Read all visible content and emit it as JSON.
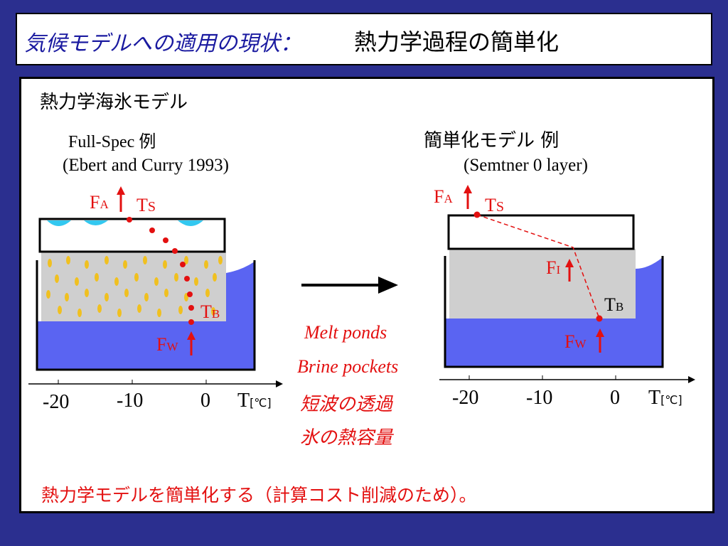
{
  "header": {
    "italic_title": "気候モデルへの適用の現状：",
    "main_title": "熱力学過程の簡単化"
  },
  "content": {
    "section_title": "熱力学海氷モデル",
    "left": {
      "title": "Full-Spec 例",
      "ref": "(Ebert and Curry 1993)"
    },
    "right": {
      "title": "簡単化モデル 例",
      "ref": "(Semtner 0 layer)"
    },
    "processes": [
      "Melt ponds",
      "Brine pockets",
      "短波の透過",
      "氷の熱容量"
    ],
    "conclusion": "熱力学モデルを簡単化する（計算コスト削減のため）。",
    "colors": {
      "water": "#5a64f2",
      "ice": "#cfcfcf",
      "brine": "#f0c020",
      "ponds": "#33c8f0",
      "annotation_red": "#e31010",
      "background": "#2b2f8f"
    },
    "axis": {
      "ticks": [
        "-20",
        "-10",
        "0"
      ],
      "label": "T",
      "unit": "[℃]"
    },
    "flux_labels": {
      "FA": {
        "main": "F",
        "sub": "A"
      },
      "FW": {
        "main": "F",
        "sub": "W"
      },
      "FI": {
        "main": "F",
        "sub": "I"
      },
      "TS": {
        "main": "T",
        "sub": "S"
      },
      "TB": {
        "main": "T",
        "sub": "B"
      }
    }
  }
}
